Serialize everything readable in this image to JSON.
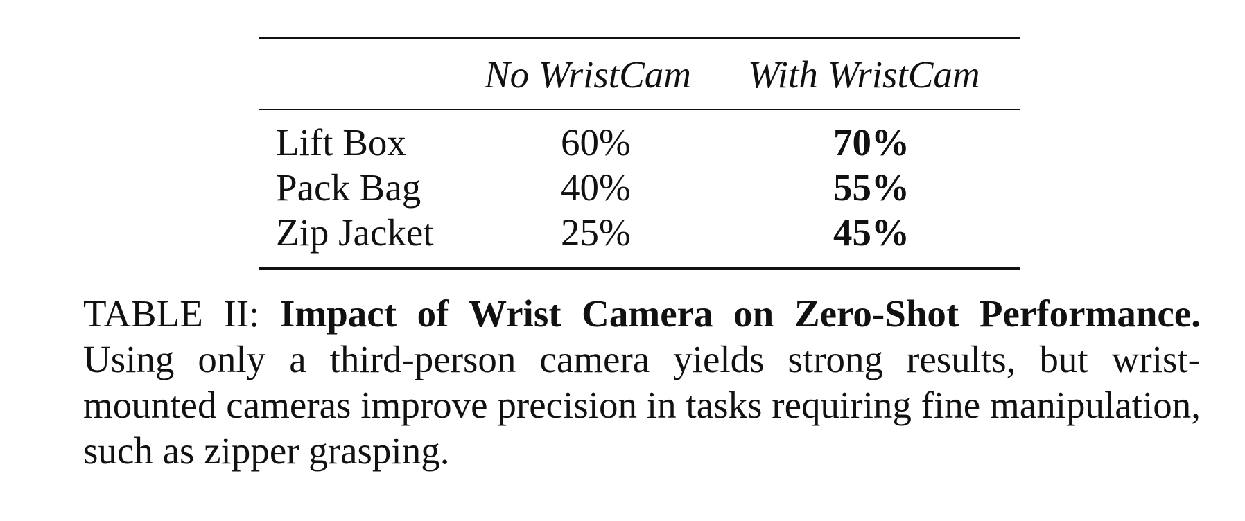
{
  "table": {
    "columns": [
      "",
      "No WristCam",
      "With WristCam"
    ],
    "rows": [
      {
        "task": "Lift Box",
        "no_wristcam": "60%",
        "with_wristcam": "70%"
      },
      {
        "task": "Pack Bag",
        "no_wristcam": "40%",
        "with_wristcam": "55%"
      },
      {
        "task": "Zip Jacket",
        "no_wristcam": "25%",
        "with_wristcam": "45%"
      }
    ]
  },
  "caption": {
    "label": "TABLE II: ",
    "title": "Impact of Wrist Camera on Zero-Shot Performance.",
    "body": " Using only a third-person camera yields strong results, but wrist-mounted cameras improve precision in tasks requiring fine manipulation, such as zipper grasping."
  }
}
